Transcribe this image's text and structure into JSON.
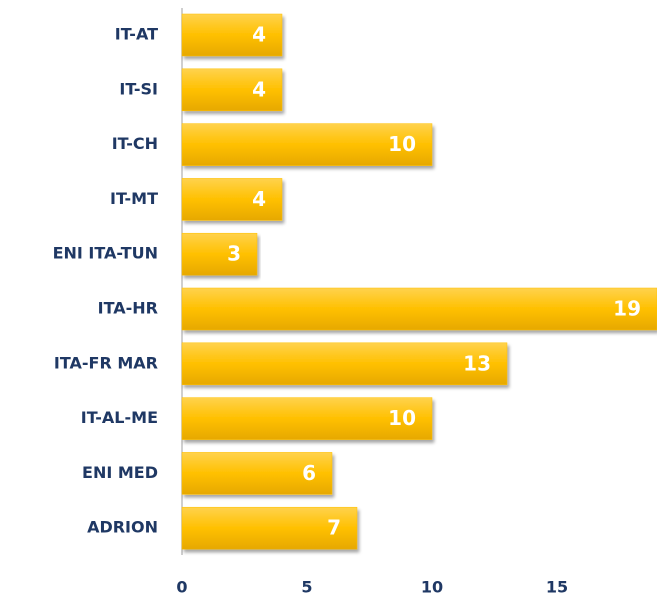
{
  "chart_data": {
    "type": "bar",
    "orientation": "horizontal",
    "categories": [
      "IT-AT",
      "IT-SI",
      "IT-CH",
      "IT-MT",
      "ENI ITA-TUN",
      "ITA-HR",
      "ITA-FR MAR",
      "IT-AL-ME",
      "ENI MED",
      "ADRION"
    ],
    "values": [
      4,
      4,
      10,
      4,
      3,
      19,
      13,
      10,
      6,
      7
    ],
    "color": "#ffc000",
    "xlim": [
      0,
      19
    ],
    "xticks": [
      0,
      5,
      10,
      15
    ],
    "grid": false
  }
}
